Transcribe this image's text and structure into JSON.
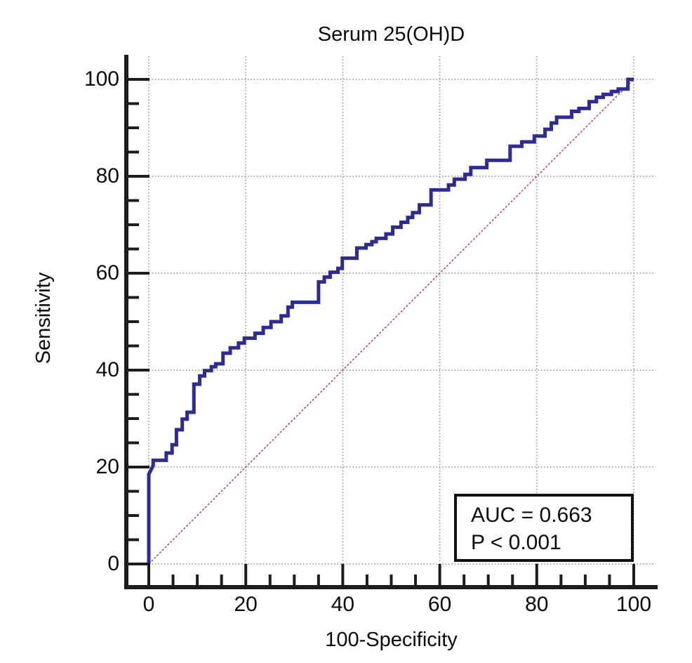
{
  "chart_data": {
    "type": "line",
    "subtype": "roc-step-curve",
    "title": "Serum 25(OH)D",
    "xlabel": "100-Specificity",
    "ylabel": "Sensitivity",
    "xlim": [
      0,
      100
    ],
    "ylim": [
      0,
      100
    ],
    "x_major_ticks": [
      0,
      20,
      40,
      60,
      80,
      100
    ],
    "y_major_ticks": [
      0,
      20,
      40,
      60,
      80,
      100
    ],
    "x_tick_labels": [
      "0",
      "20",
      "40",
      "60",
      "80",
      "100"
    ],
    "y_tick_labels": [
      "0",
      "20",
      "40",
      "60",
      "80",
      "100"
    ],
    "minor_tick_step": 5,
    "grid": "dotted-major-gridlines",
    "legend_position": "none",
    "annotation_box": {
      "line1": "AUC = 0.663",
      "line2": "P < 0.001"
    },
    "series": [
      {
        "name": "ROC curve Serum 25(OH)D",
        "style": "solid-step",
        "color": "#2c2c94",
        "points": [
          [
            0,
            0
          ],
          [
            0,
            18.5
          ],
          [
            0.9,
            20.3
          ],
          [
            0.9,
            21.4
          ],
          [
            3.6,
            21.4
          ],
          [
            3.6,
            22.9
          ],
          [
            4.8,
            22.9
          ],
          [
            4.8,
            24.6
          ],
          [
            5.7,
            24.6
          ],
          [
            5.7,
            27.7
          ],
          [
            6.9,
            27.7
          ],
          [
            6.9,
            29.9
          ],
          [
            7.9,
            29.9
          ],
          [
            7.9,
            31.3
          ],
          [
            9.3,
            31.3
          ],
          [
            9.3,
            37.1
          ],
          [
            10.5,
            37.1
          ],
          [
            10.5,
            38.8
          ],
          [
            11.5,
            38.8
          ],
          [
            11.5,
            39.9
          ],
          [
            12.9,
            39.9
          ],
          [
            12.9,
            40.7
          ],
          [
            13.8,
            40.7
          ],
          [
            13.8,
            41.3
          ],
          [
            15.3,
            41.3
          ],
          [
            15.3,
            43.5
          ],
          [
            16.8,
            43.5
          ],
          [
            16.8,
            44.6
          ],
          [
            18.5,
            44.6
          ],
          [
            18.5,
            45.6
          ],
          [
            19.7,
            45.6
          ],
          [
            19.7,
            46.6
          ],
          [
            21.9,
            46.6
          ],
          [
            21.9,
            47.6
          ],
          [
            23.6,
            47.6
          ],
          [
            23.6,
            48.8
          ],
          [
            25.2,
            48.8
          ],
          [
            25.2,
            50.0
          ],
          [
            27.3,
            50.0
          ],
          [
            27.3,
            51.2
          ],
          [
            28.7,
            51.2
          ],
          [
            28.7,
            53.0
          ],
          [
            29.6,
            53.0
          ],
          [
            29.6,
            54.0
          ],
          [
            35.0,
            54.0
          ],
          [
            35.0,
            58.2
          ],
          [
            36.2,
            58.2
          ],
          [
            36.2,
            59.2
          ],
          [
            37.4,
            59.2
          ],
          [
            37.4,
            60.2
          ],
          [
            39.0,
            60.2
          ],
          [
            39.0,
            61.0
          ],
          [
            39.9,
            61.0
          ],
          [
            39.9,
            63.1
          ],
          [
            42.9,
            63.1
          ],
          [
            42.9,
            65.2
          ],
          [
            44.8,
            65.2
          ],
          [
            44.8,
            65.9
          ],
          [
            46.0,
            65.9
          ],
          [
            46.0,
            66.5
          ],
          [
            46.9,
            66.5
          ],
          [
            46.9,
            67.2
          ],
          [
            48.9,
            67.2
          ],
          [
            48.9,
            68.1
          ],
          [
            50.3,
            68.1
          ],
          [
            50.3,
            69.5
          ],
          [
            52.0,
            69.5
          ],
          [
            52.0,
            70.5
          ],
          [
            53.4,
            70.5
          ],
          [
            53.4,
            71.5
          ],
          [
            54.4,
            71.5
          ],
          [
            54.4,
            72.5
          ],
          [
            55.8,
            72.5
          ],
          [
            55.8,
            74.1
          ],
          [
            58.2,
            74.1
          ],
          [
            58.2,
            77.2
          ],
          [
            61.8,
            77.2
          ],
          [
            61.8,
            78.2
          ],
          [
            63.0,
            78.2
          ],
          [
            63.0,
            79.4
          ],
          [
            65.2,
            79.4
          ],
          [
            65.2,
            80.4
          ],
          [
            66.4,
            80.4
          ],
          [
            66.4,
            81.8
          ],
          [
            69.7,
            81.8
          ],
          [
            69.7,
            83.3
          ],
          [
            74.5,
            83.3
          ],
          [
            74.5,
            86.2
          ],
          [
            76.9,
            86.2
          ],
          [
            76.9,
            87.1
          ],
          [
            79.5,
            87.1
          ],
          [
            79.5,
            88.3
          ],
          [
            81.7,
            88.3
          ],
          [
            81.7,
            89.7
          ],
          [
            83.0,
            89.7
          ],
          [
            83.0,
            91.0
          ],
          [
            84.1,
            91.0
          ],
          [
            84.1,
            92.2
          ],
          [
            87.2,
            92.2
          ],
          [
            87.2,
            93.4
          ],
          [
            88.7,
            93.4
          ],
          [
            88.7,
            94.0
          ],
          [
            90.8,
            94.0
          ],
          [
            90.8,
            95.4
          ],
          [
            92.3,
            95.4
          ],
          [
            92.3,
            96.3
          ],
          [
            93.7,
            96.3
          ],
          [
            93.7,
            96.9
          ],
          [
            95.4,
            96.9
          ],
          [
            95.4,
            97.5
          ],
          [
            96.8,
            97.5
          ],
          [
            96.8,
            98.0
          ],
          [
            98.8,
            98.0
          ],
          [
            98.8,
            100
          ],
          [
            100,
            100
          ]
        ]
      },
      {
        "name": "Reference diagonal (chance line)",
        "style": "dotted",
        "color": "#b2453c",
        "points": [
          [
            0,
            0
          ],
          [
            100,
            100
          ]
        ]
      }
    ]
  },
  "colors": {
    "curve": "#2c2c94",
    "reference": "#b2453c",
    "grid": "#8c8c8c",
    "axis": "#1c1c1c",
    "text": "#0a0a0a",
    "annotation_border": "#111111",
    "background": "#ffffff"
  }
}
